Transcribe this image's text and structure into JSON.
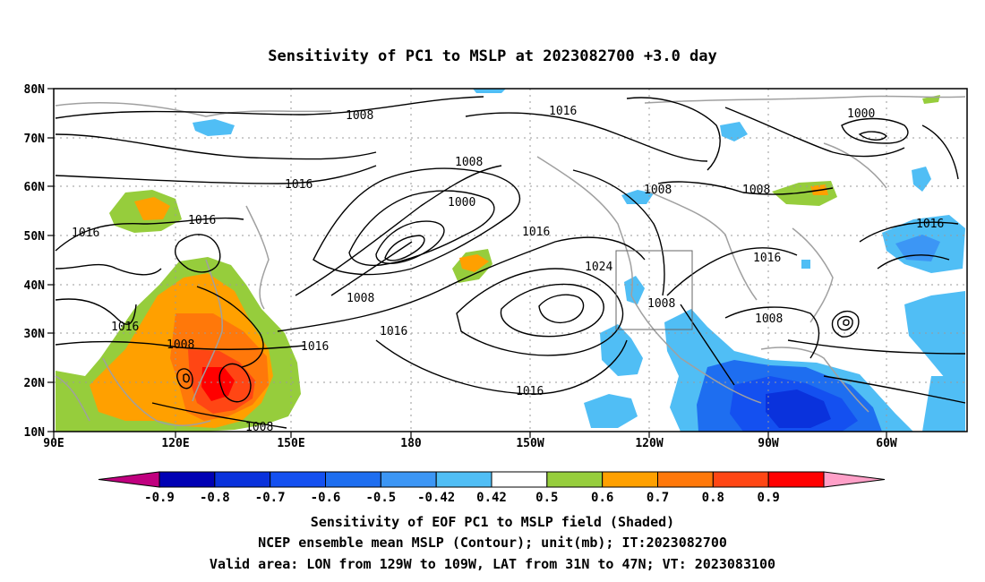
{
  "title": "Sensitivity of PC1 to MSLP at 2023082700 +3.0 day",
  "lat_labels": [
    "80N",
    "70N",
    "60N",
    "50N",
    "40N",
    "30N",
    "20N",
    "10N"
  ],
  "lon_labels": [
    "90E",
    "120E",
    "150E",
    "180",
    "150W",
    "120W",
    "90W",
    "60W"
  ],
  "colorbar": {
    "labels": [
      "-0.9",
      "-0.8",
      "-0.7",
      "-0.6",
      "-0.5",
      "-0.42",
      "0.42",
      "0.5",
      "0.6",
      "0.7",
      "0.8",
      "0.9"
    ],
    "colors": [
      "#c0007f",
      "#0000b4",
      "#0a32dc",
      "#1450f0",
      "#1e6ef0",
      "#3c96f5",
      "#50bef5",
      "#ffffff",
      "#96cd3c",
      "#ffa000",
      "#ff780a",
      "#ff4614",
      "#ff0000",
      "#ffa0c8"
    ]
  },
  "contour_labels": [
    {
      "text": "1008"
    },
    {
      "text": "1016"
    },
    {
      "text": "1000"
    },
    {
      "text": "1016"
    },
    {
      "text": "1008"
    },
    {
      "text": "1000"
    },
    {
      "text": "1016"
    },
    {
      "text": "1016"
    },
    {
      "text": "1016"
    },
    {
      "text": "1008"
    },
    {
      "text": "1016"
    },
    {
      "text": "1008"
    },
    {
      "text": "1016"
    },
    {
      "text": "1016"
    },
    {
      "text": "1024"
    },
    {
      "text": "1008"
    },
    {
      "text": "1008"
    },
    {
      "text": "1008"
    },
    {
      "text": "1016"
    },
    {
      "text": "1016"
    },
    {
      "text": "1008"
    },
    {
      "text": "1008"
    },
    {
      "text": "1016"
    },
    {
      "text": "1008"
    }
  ],
  "valid_area_box": "129W-109W, 31N-47N",
  "caption": {
    "line1": "Sensitivity of EOF PC1 to MSLP field (Shaded)",
    "line2": "NCEP ensemble mean MSLP (Contour); unit(mb); IT:2023082700",
    "line3": "Valid area: LON from 129W to 109W, LAT from 31N to 47N; VT: 2023083100"
  }
}
